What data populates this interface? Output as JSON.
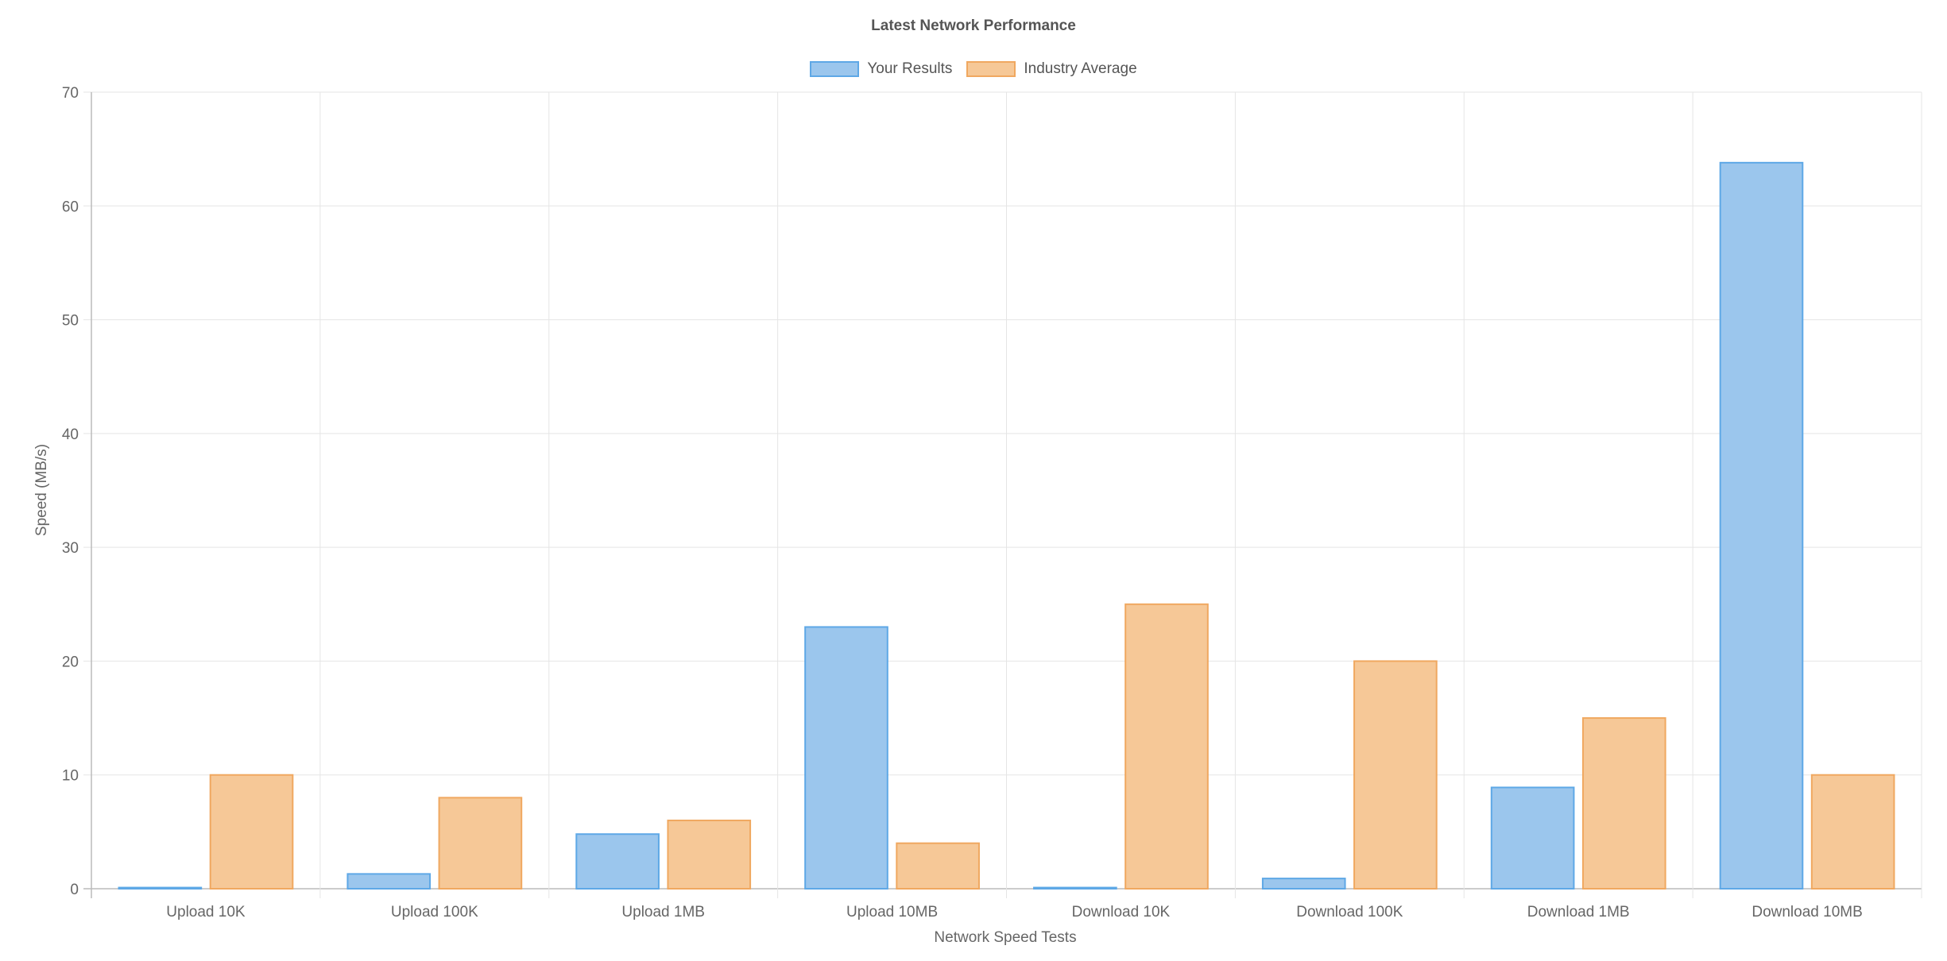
{
  "chart_data": {
    "type": "bar",
    "title": "Latest Network Performance",
    "xlabel": "Network Speed Tests",
    "ylabel": "Speed (MB/s)",
    "ylim": [
      0,
      70
    ],
    "yticks": [
      0,
      10,
      20,
      30,
      40,
      50,
      60,
      70
    ],
    "grid": true,
    "legend_position": "top",
    "categories": [
      "Upload 10K",
      "Upload 100K",
      "Upload 1MB",
      "Upload 10MB",
      "Download 10K",
      "Download 100K",
      "Download 1MB",
      "Download 10MB"
    ],
    "series": [
      {
        "name": "Your Results",
        "values": [
          0.1,
          1.3,
          4.8,
          23,
          0.1,
          0.9,
          8.9,
          63.8
        ],
        "fill": "#9bc6ed",
        "stroke": "#5ea8e6"
      },
      {
        "name": "Industry Average",
        "values": [
          10,
          8,
          6,
          4,
          25,
          20,
          15,
          10
        ],
        "fill": "#f6c897",
        "stroke": "#f0a860"
      }
    ]
  }
}
